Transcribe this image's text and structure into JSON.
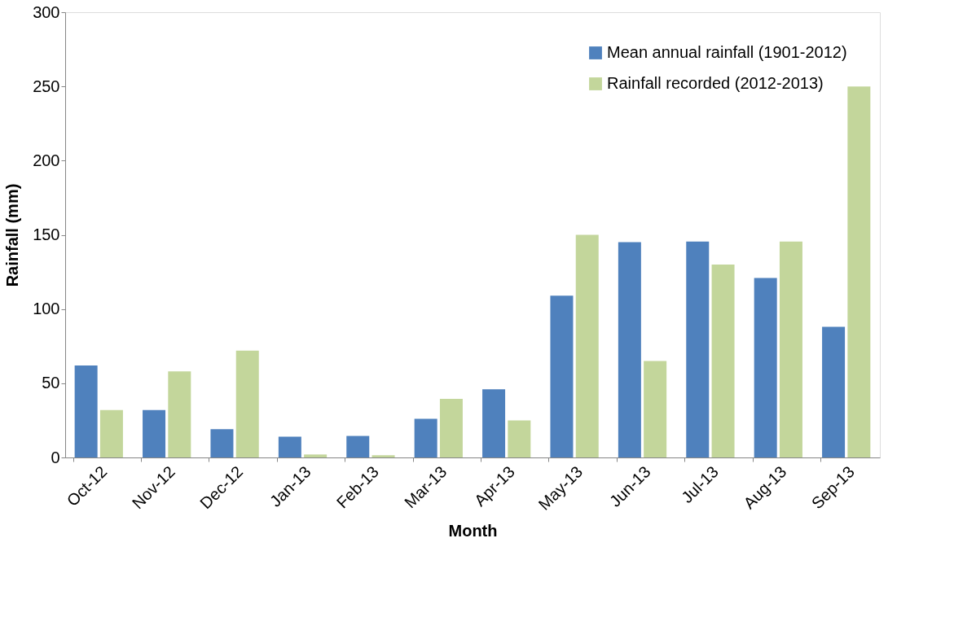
{
  "chart_data": {
    "type": "bar",
    "xlabel": "Month",
    "ylabel": "Rainfall (mm)",
    "categories": [
      "Oct-12",
      "Nov-12",
      "Dec-12",
      "Jan-13",
      "Feb-13",
      "Mar-13",
      "Apr-13",
      "May-13",
      "Jun-13",
      "Jul-13",
      "Aug-13",
      "Sep-13"
    ],
    "series": [
      {
        "name": "Mean annual rainfall (1901-2012)",
        "color": "#4f81bd",
        "values": [
          62,
          32,
          19,
          14,
          14.5,
          26,
          46,
          109,
          145,
          145.5,
          121,
          88
        ]
      },
      {
        "name": "Rainfall recorded (2012-2013)",
        "color": "#c3d69b",
        "values": [
          32,
          58,
          72,
          2,
          1.5,
          39.5,
          25,
          150,
          65,
          130,
          145.5,
          250
        ]
      }
    ],
    "ylim": [
      0,
      300
    ],
    "yticks": [
      0,
      50,
      100,
      150,
      200,
      250,
      300
    ],
    "grid": false,
    "legend": "top right"
  }
}
